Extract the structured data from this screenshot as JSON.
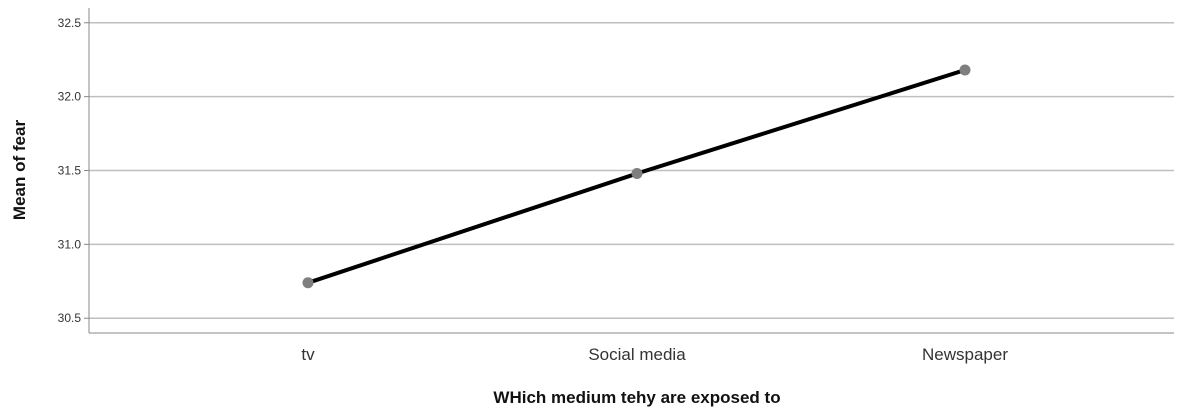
{
  "chart_data": {
    "type": "line",
    "title": "",
    "xlabel": "WHich medium tehy are exposed to",
    "ylabel": "Mean of fear",
    "categories": [
      "tv",
      "Social media",
      "Newspaper"
    ],
    "series": [
      {
        "values": [
          30.74,
          31.48,
          32.18
        ]
      }
    ],
    "ylim": [
      30.4,
      32.6
    ],
    "yticks": [
      30.5,
      31.0,
      31.5,
      32.0,
      32.5
    ],
    "ytick_labels": [
      "30.5",
      "31.0",
      "31.5",
      "32.0",
      "32.5"
    ],
    "grid": "horizontal",
    "legend": "none",
    "colors": {
      "line": "#000000",
      "marker": "#7f7f7f",
      "grid": "#bfbfbf",
      "axis": "#888888"
    }
  }
}
